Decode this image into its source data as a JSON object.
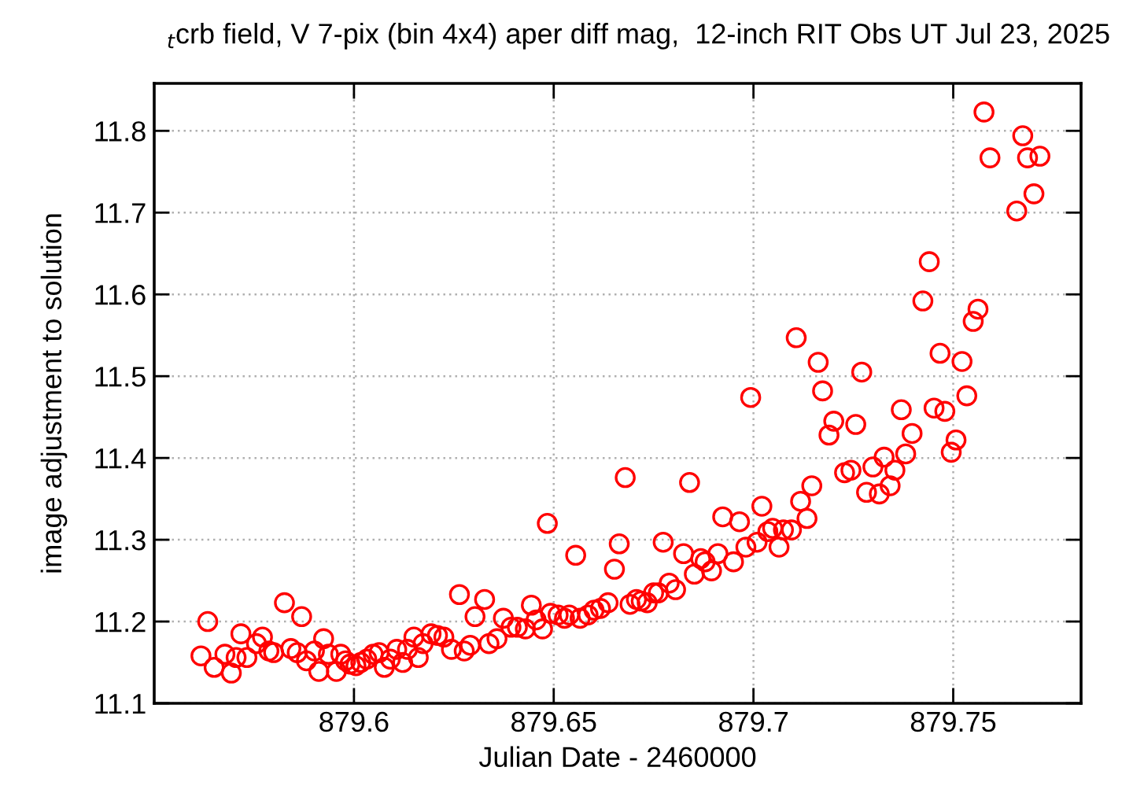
{
  "chart_data": {
    "type": "scatter",
    "title": "$_{t}$crb field, V 7-pix (bin 4x4) aper diff mag,  12-inch RIT Obs UT Jul 23, 2025",
    "xlabel": "Julian Date - 2460000",
    "ylabel": "image adjustment to solution",
    "xlim": [
      879.55,
      879.782
    ],
    "ylim": [
      11.1,
      11.858
    ],
    "xticks": [
      879.6,
      879.65,
      879.7,
      879.75
    ],
    "yticks": [
      11.1,
      11.2,
      11.3,
      11.4,
      11.5,
      11.6,
      11.7,
      11.8
    ],
    "grid": true,
    "marker": "circle",
    "series": [
      {
        "color": "#ff0000",
        "x": [
          879.5617,
          879.5634,
          879.565,
          879.5677,
          879.5693,
          879.5705,
          879.5717,
          879.5732,
          879.5756,
          879.5771,
          879.5787,
          879.5799,
          879.5826,
          879.5842,
          879.5858,
          879.5869,
          879.5881,
          879.5901,
          879.5912,
          879.5924,
          879.5936,
          879.5956,
          879.5967,
          879.5979,
          879.599,
          879.6005,
          879.6017,
          879.6032,
          879.6048,
          879.6063,
          879.6076,
          879.6091,
          879.6107,
          879.6122,
          879.6134,
          879.615,
          879.6161,
          879.6173,
          879.6193,
          879.6209,
          879.6225,
          879.6244,
          879.6264,
          879.6276,
          879.6291,
          879.6303,
          879.6327,
          879.6338,
          879.6358,
          879.6374,
          879.6393,
          879.6409,
          879.6429,
          879.6444,
          879.6456,
          879.6472,
          879.6484,
          879.6492,
          879.6511,
          879.6527,
          879.6539,
          879.6555,
          879.6566,
          879.6586,
          879.6601,
          879.6617,
          879.6636,
          879.6652,
          879.6664,
          879.6679,
          879.6691,
          879.6707,
          879.6719,
          879.6734,
          879.675,
          879.6762,
          879.6774,
          879.6789,
          879.6805,
          879.6825,
          879.684,
          879.6852,
          879.6868,
          879.6879,
          879.6895,
          879.6911,
          879.6923,
          879.695,
          879.6965,
          879.6981,
          879.6993,
          879.7009,
          879.7021,
          879.7036,
          879.7048,
          879.7064,
          879.7075,
          879.7095,
          879.7107,
          879.7118,
          879.7134,
          879.7146,
          879.7162,
          879.7173,
          879.7189,
          879.7201,
          879.7228,
          879.7244,
          879.7256,
          879.7271,
          879.7283,
          879.7299,
          879.7315,
          879.7327,
          879.7342,
          879.7354,
          879.737,
          879.7381,
          879.7397,
          879.7424,
          879.744,
          879.7452,
          879.7467,
          879.7479,
          879.7495,
          879.7507,
          879.7522,
          879.7534,
          879.755,
          879.7562,
          879.7577,
          879.7592,
          879.7659,
          879.7674,
          879.7686,
          879.7702,
          879.7717
        ],
        "values": [
          11.158,
          11.2,
          11.144,
          11.16,
          11.137,
          11.156,
          11.185,
          11.156,
          11.173,
          11.181,
          11.164,
          11.162,
          11.223,
          11.167,
          11.162,
          11.206,
          11.152,
          11.164,
          11.139,
          11.179,
          11.16,
          11.139,
          11.16,
          11.152,
          11.148,
          11.146,
          11.15,
          11.154,
          11.16,
          11.162,
          11.144,
          11.154,
          11.166,
          11.15,
          11.166,
          11.181,
          11.156,
          11.173,
          11.185,
          11.183,
          11.181,
          11.166,
          11.233,
          11.164,
          11.171,
          11.206,
          11.227,
          11.173,
          11.179,
          11.204,
          11.193,
          11.193,
          11.191,
          11.22,
          11.202,
          11.191,
          11.32,
          11.21,
          11.208,
          11.204,
          11.208,
          11.281,
          11.204,
          11.208,
          11.214,
          11.216,
          11.223,
          11.264,
          11.295,
          11.376,
          11.221,
          11.227,
          11.225,
          11.223,
          11.235,
          11.235,
          11.297,
          11.247,
          11.239,
          11.283,
          11.37,
          11.258,
          11.277,
          11.273,
          11.262,
          11.283,
          11.328,
          11.273,
          11.322,
          11.291,
          11.474,
          11.297,
          11.341,
          11.31,
          11.314,
          11.291,
          11.312,
          11.312,
          11.547,
          11.347,
          11.326,
          11.366,
          11.517,
          11.482,
          11.428,
          11.445,
          11.382,
          11.385,
          11.441,
          11.505,
          11.358,
          11.389,
          11.356,
          11.401,
          11.366,
          11.385,
          11.459,
          11.405,
          11.43,
          11.592,
          11.64,
          11.461,
          11.528,
          11.457,
          11.407,
          11.422,
          11.518,
          11.476,
          11.567,
          11.582,
          11.823,
          11.767,
          11.702,
          11.794,
          11.767,
          11.723,
          11.769
        ]
      }
    ]
  }
}
